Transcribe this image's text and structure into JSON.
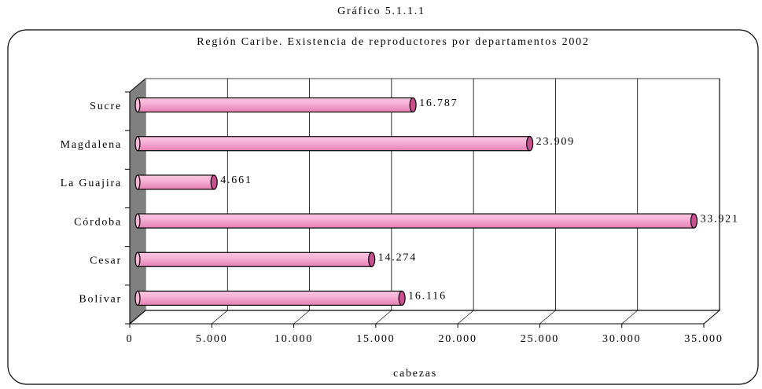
{
  "chart_data": {
    "type": "bar",
    "orientation": "horizontal",
    "suptitle": "Gráfico 5.1.1.1",
    "title": "Región Caribe. Existencia de reproductores por departamentos 2002",
    "xlabel": "cabezas",
    "categories": [
      "Bolívar",
      "Cesar",
      "Córdoba",
      "La Guajira",
      "Magdalena",
      "Sucre"
    ],
    "values": [
      16116,
      14274,
      33921,
      4661,
      23909,
      16787
    ],
    "value_labels": [
      "16.116",
      "14.274",
      "33.921",
      "4.661",
      "23.909",
      "16.787"
    ],
    "color": "#f29ac8",
    "xlim": [
      0,
      35000
    ],
    "xticks": [
      0,
      {
        "value": 5000,
        "label": "5.000"
      },
      {
        "value": 10000,
        "label": "10.000"
      },
      {
        "value": 15000,
        "label": "15.000"
      },
      {
        "value": 20000,
        "label": "20.000"
      },
      {
        "value": 25000,
        "label": "25.000"
      },
      {
        "value": 30000,
        "label": "30.000"
      },
      {
        "value": 35000,
        "label": "35.000"
      }
    ],
    "grid": true
  }
}
